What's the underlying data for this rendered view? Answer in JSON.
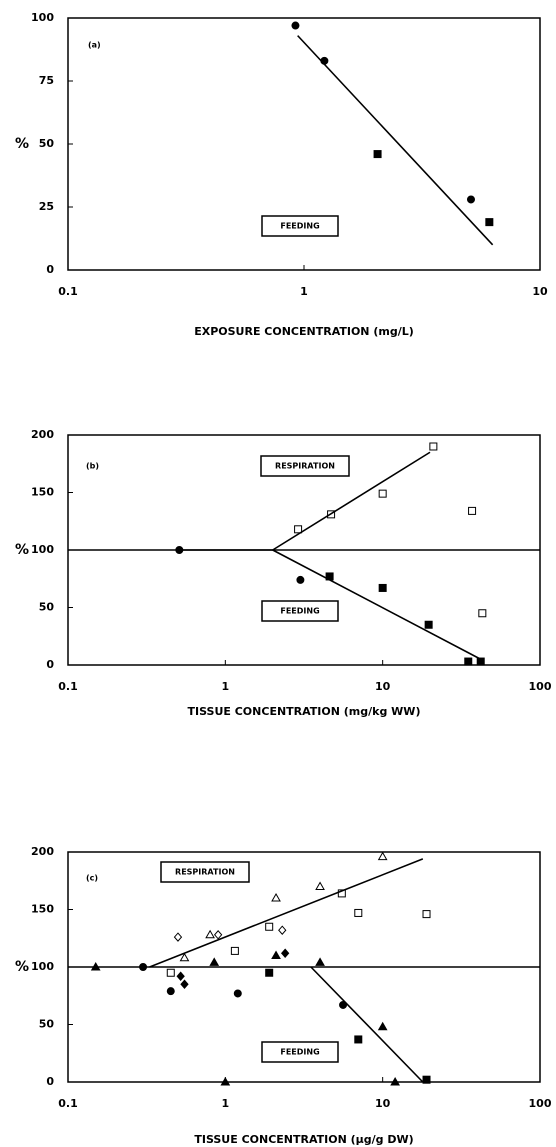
{
  "chart_data": [
    {
      "type": "scatter",
      "panel_label": "(a)",
      "ylabel": "%",
      "xlabel": "EXPOSURE CONCENTRATION (mg/L)",
      "xscale": "log",
      "xlim": [
        0.1,
        10
      ],
      "xticks": [
        0.1,
        1,
        10
      ],
      "ylim": [
        0,
        100
      ],
      "yticks": [
        0,
        25,
        50,
        75,
        100
      ],
      "color": "#000000",
      "annotations": [
        "FEEDING"
      ],
      "series": [
        {
          "marker": "circle-filled",
          "x": [
            0.92,
            1.22,
            5.1
          ],
          "values": [
            97,
            83,
            28
          ]
        },
        {
          "marker": "square-filled",
          "x": [
            2.05,
            6.1
          ],
          "values": [
            46,
            19
          ]
        },
        {
          "marker": "line",
          "x": [
            0.94,
            6.3
          ],
          "values": [
            93,
            10
          ]
        }
      ]
    },
    {
      "type": "scatter",
      "panel_label": "(b)",
      "ylabel": "%",
      "xlabel": "TISSUE CONCENTRATION (mg/kg WW)",
      "xscale": "log",
      "xlim": [
        0.1,
        100
      ],
      "xticks": [
        0.1,
        1,
        10,
        100
      ],
      "ylim": [
        0,
        200
      ],
      "yticks": [
        0,
        50,
        100,
        150,
        200
      ],
      "color": "#000000",
      "annotations": [
        "RESPIRATION",
        "FEEDING"
      ],
      "series": [
        {
          "marker": "circle-filled",
          "x": [
            0.51,
            3.0
          ],
          "values": [
            100,
            74
          ]
        },
        {
          "marker": "square-filled",
          "x": [
            4.6,
            10,
            19.6,
            35,
            42
          ],
          "values": [
            77,
            67,
            35,
            3,
            3
          ]
        },
        {
          "marker": "square-open",
          "x": [
            2.9,
            4.7,
            10,
            21,
            37,
            43
          ],
          "values": [
            118,
            131,
            149,
            190,
            134,
            45
          ]
        },
        {
          "marker": "line",
          "x": [
            0.1,
            100
          ],
          "values": [
            100,
            100
          ]
        },
        {
          "marker": "line",
          "x": [
            0.5,
            2
          ],
          "values": [
            100,
            100
          ]
        },
        {
          "marker": "line",
          "x": [
            2,
            20
          ],
          "values": [
            100,
            185
          ]
        },
        {
          "marker": "line",
          "x": [
            2,
            42
          ],
          "values": [
            100,
            5
          ]
        }
      ]
    },
    {
      "type": "scatter",
      "panel_label": "(c)",
      "ylabel": "%",
      "xlabel": "TISSUE CONCENTRATION (µg/g DW)",
      "xscale": "log",
      "xlim": [
        0.1,
        100
      ],
      "xticks": [
        0.1,
        1,
        10,
        100
      ],
      "ylim": [
        0,
        200
      ],
      "yticks": [
        0,
        50,
        100,
        150,
        200
      ],
      "color": "#000000",
      "annotations": [
        "RESPIRATION",
        "FEEDING"
      ],
      "series": [
        {
          "marker": "triangle-open",
          "x": [
            0.55,
            0.8,
            2.1,
            4,
            10
          ],
          "values": [
            108,
            128,
            160,
            170,
            196
          ]
        },
        {
          "marker": "diamond-open",
          "x": [
            0.5,
            0.9,
            2.3
          ],
          "values": [
            126,
            128,
            132
          ]
        },
        {
          "marker": "square-open",
          "x": [
            0.45,
            1.15,
            1.9,
            5.5,
            7,
            19
          ],
          "values": [
            95,
            114,
            135,
            164,
            147,
            146
          ]
        },
        {
          "marker": "triangle-filled",
          "x": [
            0.15,
            0.85,
            2.1,
            4,
            10,
            1,
            12
          ],
          "values": [
            100,
            104,
            110,
            104,
            48,
            0,
            0
          ]
        },
        {
          "marker": "diamond-filled",
          "x": [
            0.52,
            0.55,
            2.4
          ],
          "values": [
            92,
            85,
            112
          ]
        },
        {
          "marker": "circle-filled",
          "x": [
            0.3,
            0.45,
            1.2,
            5.6
          ],
          "values": [
            100,
            79,
            77,
            67
          ]
        },
        {
          "marker": "square-filled",
          "x": [
            1.9,
            7,
            19
          ],
          "values": [
            95,
            37,
            2
          ]
        },
        {
          "marker": "line",
          "x": [
            0.1,
            100
          ],
          "values": [
            100,
            100
          ]
        },
        {
          "marker": "line",
          "x": [
            0.33,
            18
          ],
          "values": [
            100,
            194
          ]
        },
        {
          "marker": "line",
          "x": [
            3.5,
            18
          ],
          "values": [
            100,
            0
          ]
        }
      ]
    }
  ]
}
